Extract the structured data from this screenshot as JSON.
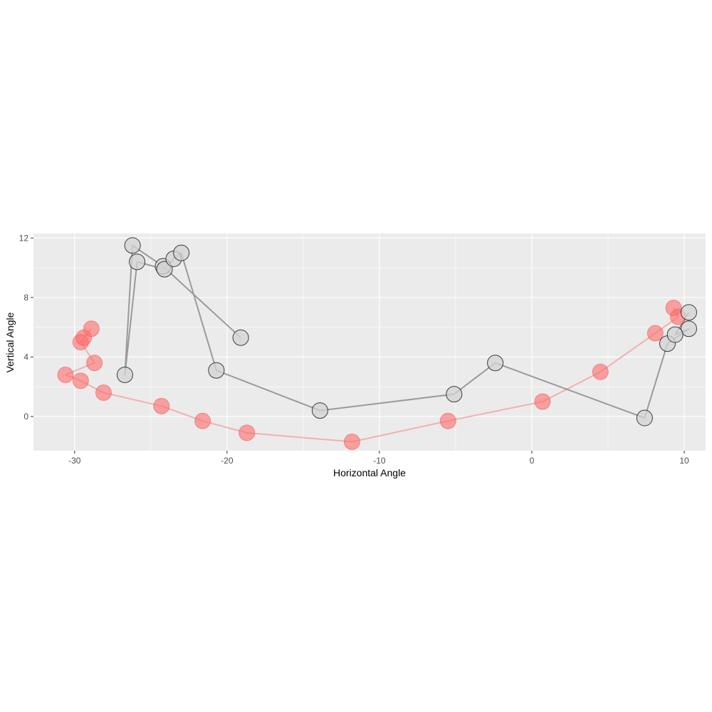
{
  "chart_data": {
    "type": "scatter",
    "title": "",
    "xlabel": "Horizontal Angle",
    "ylabel": "Vertical Angle",
    "xlim": [
      -32.7,
      11.4
    ],
    "ylim": [
      -2.3,
      12.3
    ],
    "x_ticks": [
      -30,
      -20,
      -10,
      0,
      10
    ],
    "y_ticks": [
      0,
      4,
      8,
      12
    ],
    "x_tick_labels": [
      "-30",
      "-20",
      "-10",
      "0",
      "10"
    ],
    "y_tick_labels": [
      "0",
      "4",
      "8",
      "12"
    ],
    "grid": true,
    "legend": "none",
    "series": [
      {
        "color": "#ff6b6b",
        "line_color": "#f4a6a6",
        "x": [
          9.3,
          9.6,
          8.1,
          4.5,
          0.7,
          -5.5,
          -11.8,
          -18.7,
          -21.6,
          -24.3,
          -28.1,
          -29.6,
          -30.6,
          -28.7,
          -29.6,
          -29.4,
          -28.9
        ],
        "y": [
          7.3,
          6.7,
          5.6,
          3.0,
          1.0,
          -0.3,
          -1.7,
          -1.1,
          -0.3,
          0.7,
          1.6,
          2.4,
          2.8,
          3.6,
          5.0,
          5.3,
          5.9
        ]
      },
      {
        "color": "#d3d3d3",
        "line_color": "#8c8c8c",
        "x": [
          -19.1,
          -24.2,
          -26.2,
          -26.7,
          -25.9,
          -24.1,
          -23.5,
          -23.0,
          -20.7,
          -13.9,
          -5.1,
          -2.4,
          7.4,
          8.9,
          10.3,
          9.4,
          10.3
        ],
        "y": [
          5.3,
          10.1,
          11.5,
          2.8,
          10.4,
          9.9,
          10.6,
          11.0,
          3.1,
          0.4,
          1.5,
          3.6,
          -0.1,
          4.9,
          5.9,
          5.5,
          7.0
        ]
      }
    ]
  }
}
